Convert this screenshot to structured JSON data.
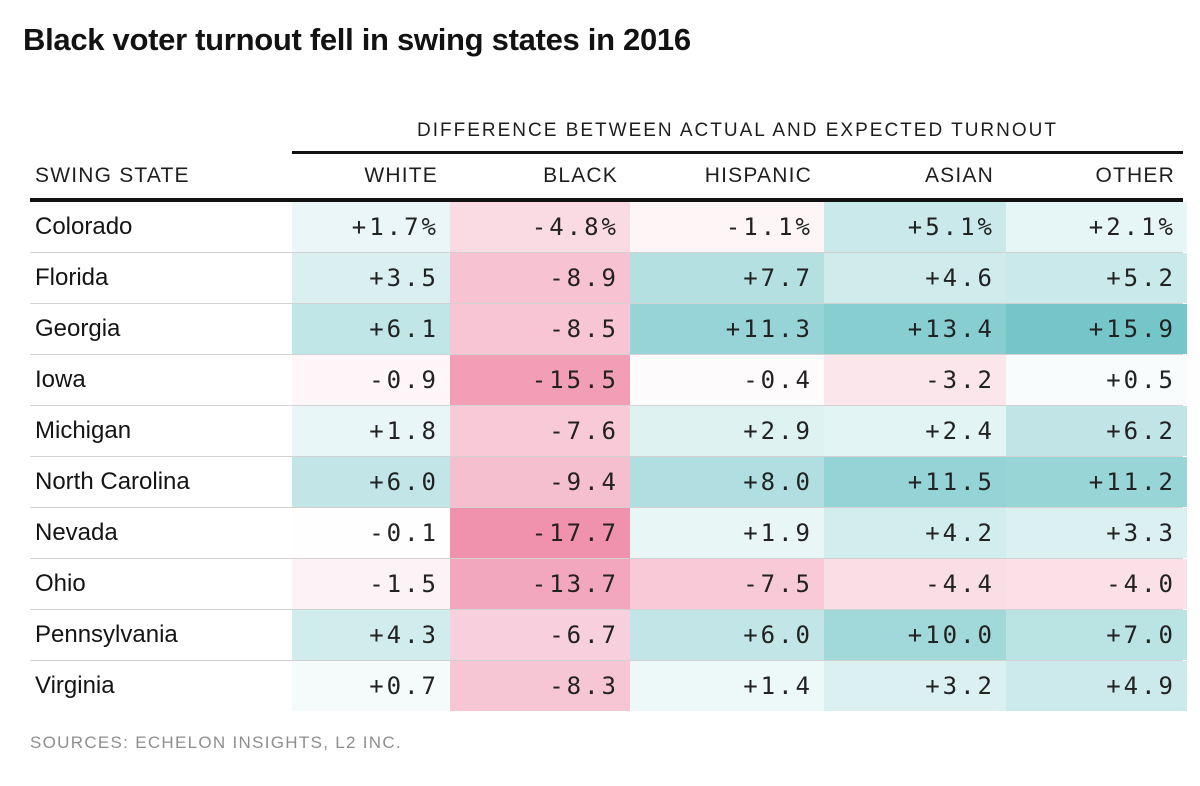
{
  "page": {
    "title": "Black voter turnout fell in swing states in 2016",
    "source_note": "SOURCES: ECHELON INSIGHTS, L2 INC."
  },
  "chart_data": {
    "type": "heatmap",
    "title": "Black voter turnout fell in swing states in 2016",
    "group_header": "DIFFERENCE BETWEEN ACTUAL AND EXPECTED TURNOUT",
    "row_label_header": "SWING STATE",
    "columns": [
      "WHITE",
      "BLACK",
      "HISPANIC",
      "ASIAN",
      "OTHER"
    ],
    "rows": [
      "Colorado",
      "Florida",
      "Georgia",
      "Iowa",
      "Michigan",
      "North Carolina",
      "Nevada",
      "Ohio",
      "Pennsylvania",
      "Virginia"
    ],
    "values": [
      [
        1.7,
        -4.8,
        -1.1,
        5.1,
        2.1
      ],
      [
        3.5,
        -8.9,
        7.7,
        4.6,
        5.2
      ],
      [
        6.1,
        -8.5,
        11.3,
        13.4,
        15.9
      ],
      [
        -0.9,
        -15.5,
        -0.4,
        -3.2,
        0.5
      ],
      [
        1.8,
        -7.6,
        2.9,
        2.4,
        6.2
      ],
      [
        6.0,
        -9.4,
        8.0,
        11.5,
        11.2
      ],
      [
        -0.1,
        -17.7,
        1.9,
        4.2,
        3.3
      ],
      [
        -1.5,
        -13.7,
        -7.5,
        -4.4,
        -4.0
      ],
      [
        4.3,
        -6.7,
        6.0,
        10.0,
        7.0
      ],
      [
        0.7,
        -8.3,
        1.4,
        3.2,
        4.9
      ]
    ],
    "unit": "%",
    "unit_shown_on_first_row_only": true,
    "plus_sign_on_positive": true,
    "color_scale": {
      "positive_max_color": "#74c6c9",
      "negative_max_color": "#f092ae",
      "neutral_color": "#ffffff",
      "positive_domain_max": 15.9,
      "negative_domain_max": 17.7,
      "gamma": 0.85
    },
    "source": "SOURCES: ECHELON INSIGHTS, L2 INC.",
    "layout": {
      "grid": "off",
      "legend": "none",
      "value_alignment": "right",
      "row_divider_color": "#d2d2d2",
      "rule_color": "#111111"
    }
  }
}
